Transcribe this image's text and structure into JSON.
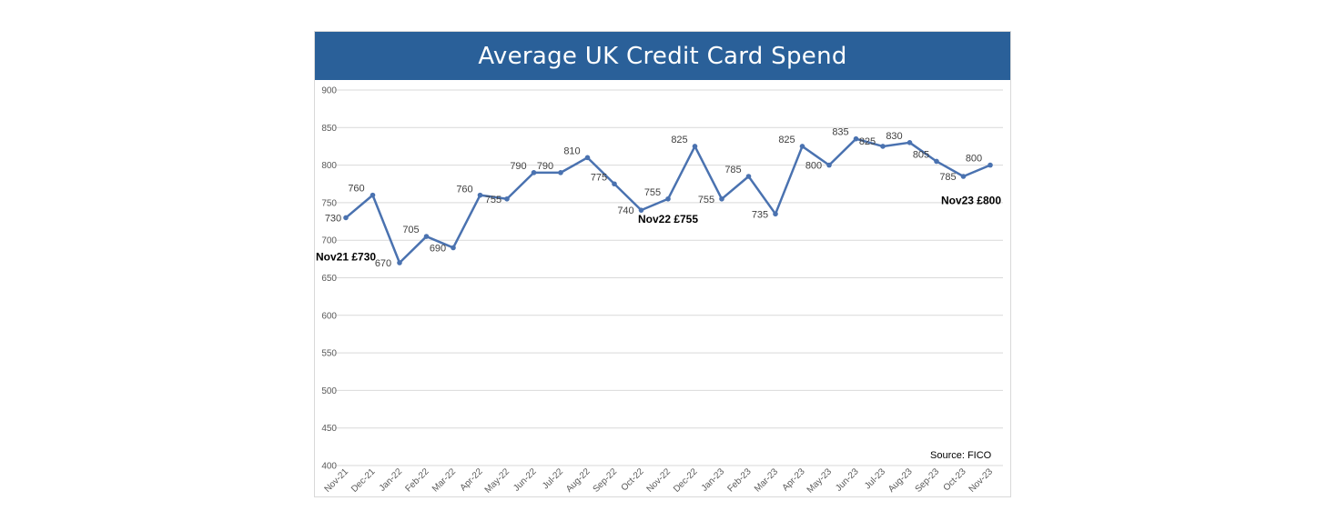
{
  "colors": {
    "header": "#2a6099",
    "line": "#4a72b0",
    "grid": "#d9d9d9"
  },
  "chart_data": {
    "type": "line",
    "title": "Average UK Credit Card Spend",
    "xlabel": "",
    "ylabel": "",
    "ylim": [
      400,
      900
    ],
    "y_ticks": [
      "900",
      "850",
      "800",
      "750",
      "700",
      "650",
      "600",
      "550",
      "500",
      "450",
      "400"
    ],
    "grid": true,
    "legend": "none",
    "categories": [
      "Nov-21",
      "Dec-21",
      "Jan-22",
      "Feb-22",
      "Mar-22",
      "Apr-22",
      "May-22",
      "Jun-22",
      "Jul-22",
      "Aug-22",
      "Sep-22",
      "Oct-22",
      "Nov-22",
      "Dec-22",
      "Jan-23",
      "Feb-23",
      "Mar-23",
      "Apr-23",
      "May-23",
      "Jun-23",
      "Jul-23",
      "Aug-23",
      "Sep-23",
      "Oct-23",
      "Nov-23"
    ],
    "series": [
      {
        "values": [
          730,
          760,
          670,
          705,
          690,
          760,
          755,
          790,
          790,
          810,
          775,
          740,
          755,
          825,
          755,
          785,
          735,
          825,
          800,
          835,
          825,
          830,
          805,
          785,
          800
        ]
      }
    ],
    "annotations": [
      {
        "text": "Nov21 £730",
        "category": "Nov-21"
      },
      {
        "text": "Nov22 £755",
        "category": "Nov-22"
      },
      {
        "text": "Nov23 £800",
        "category": "Nov-23"
      }
    ],
    "source": "Source: FICO"
  }
}
